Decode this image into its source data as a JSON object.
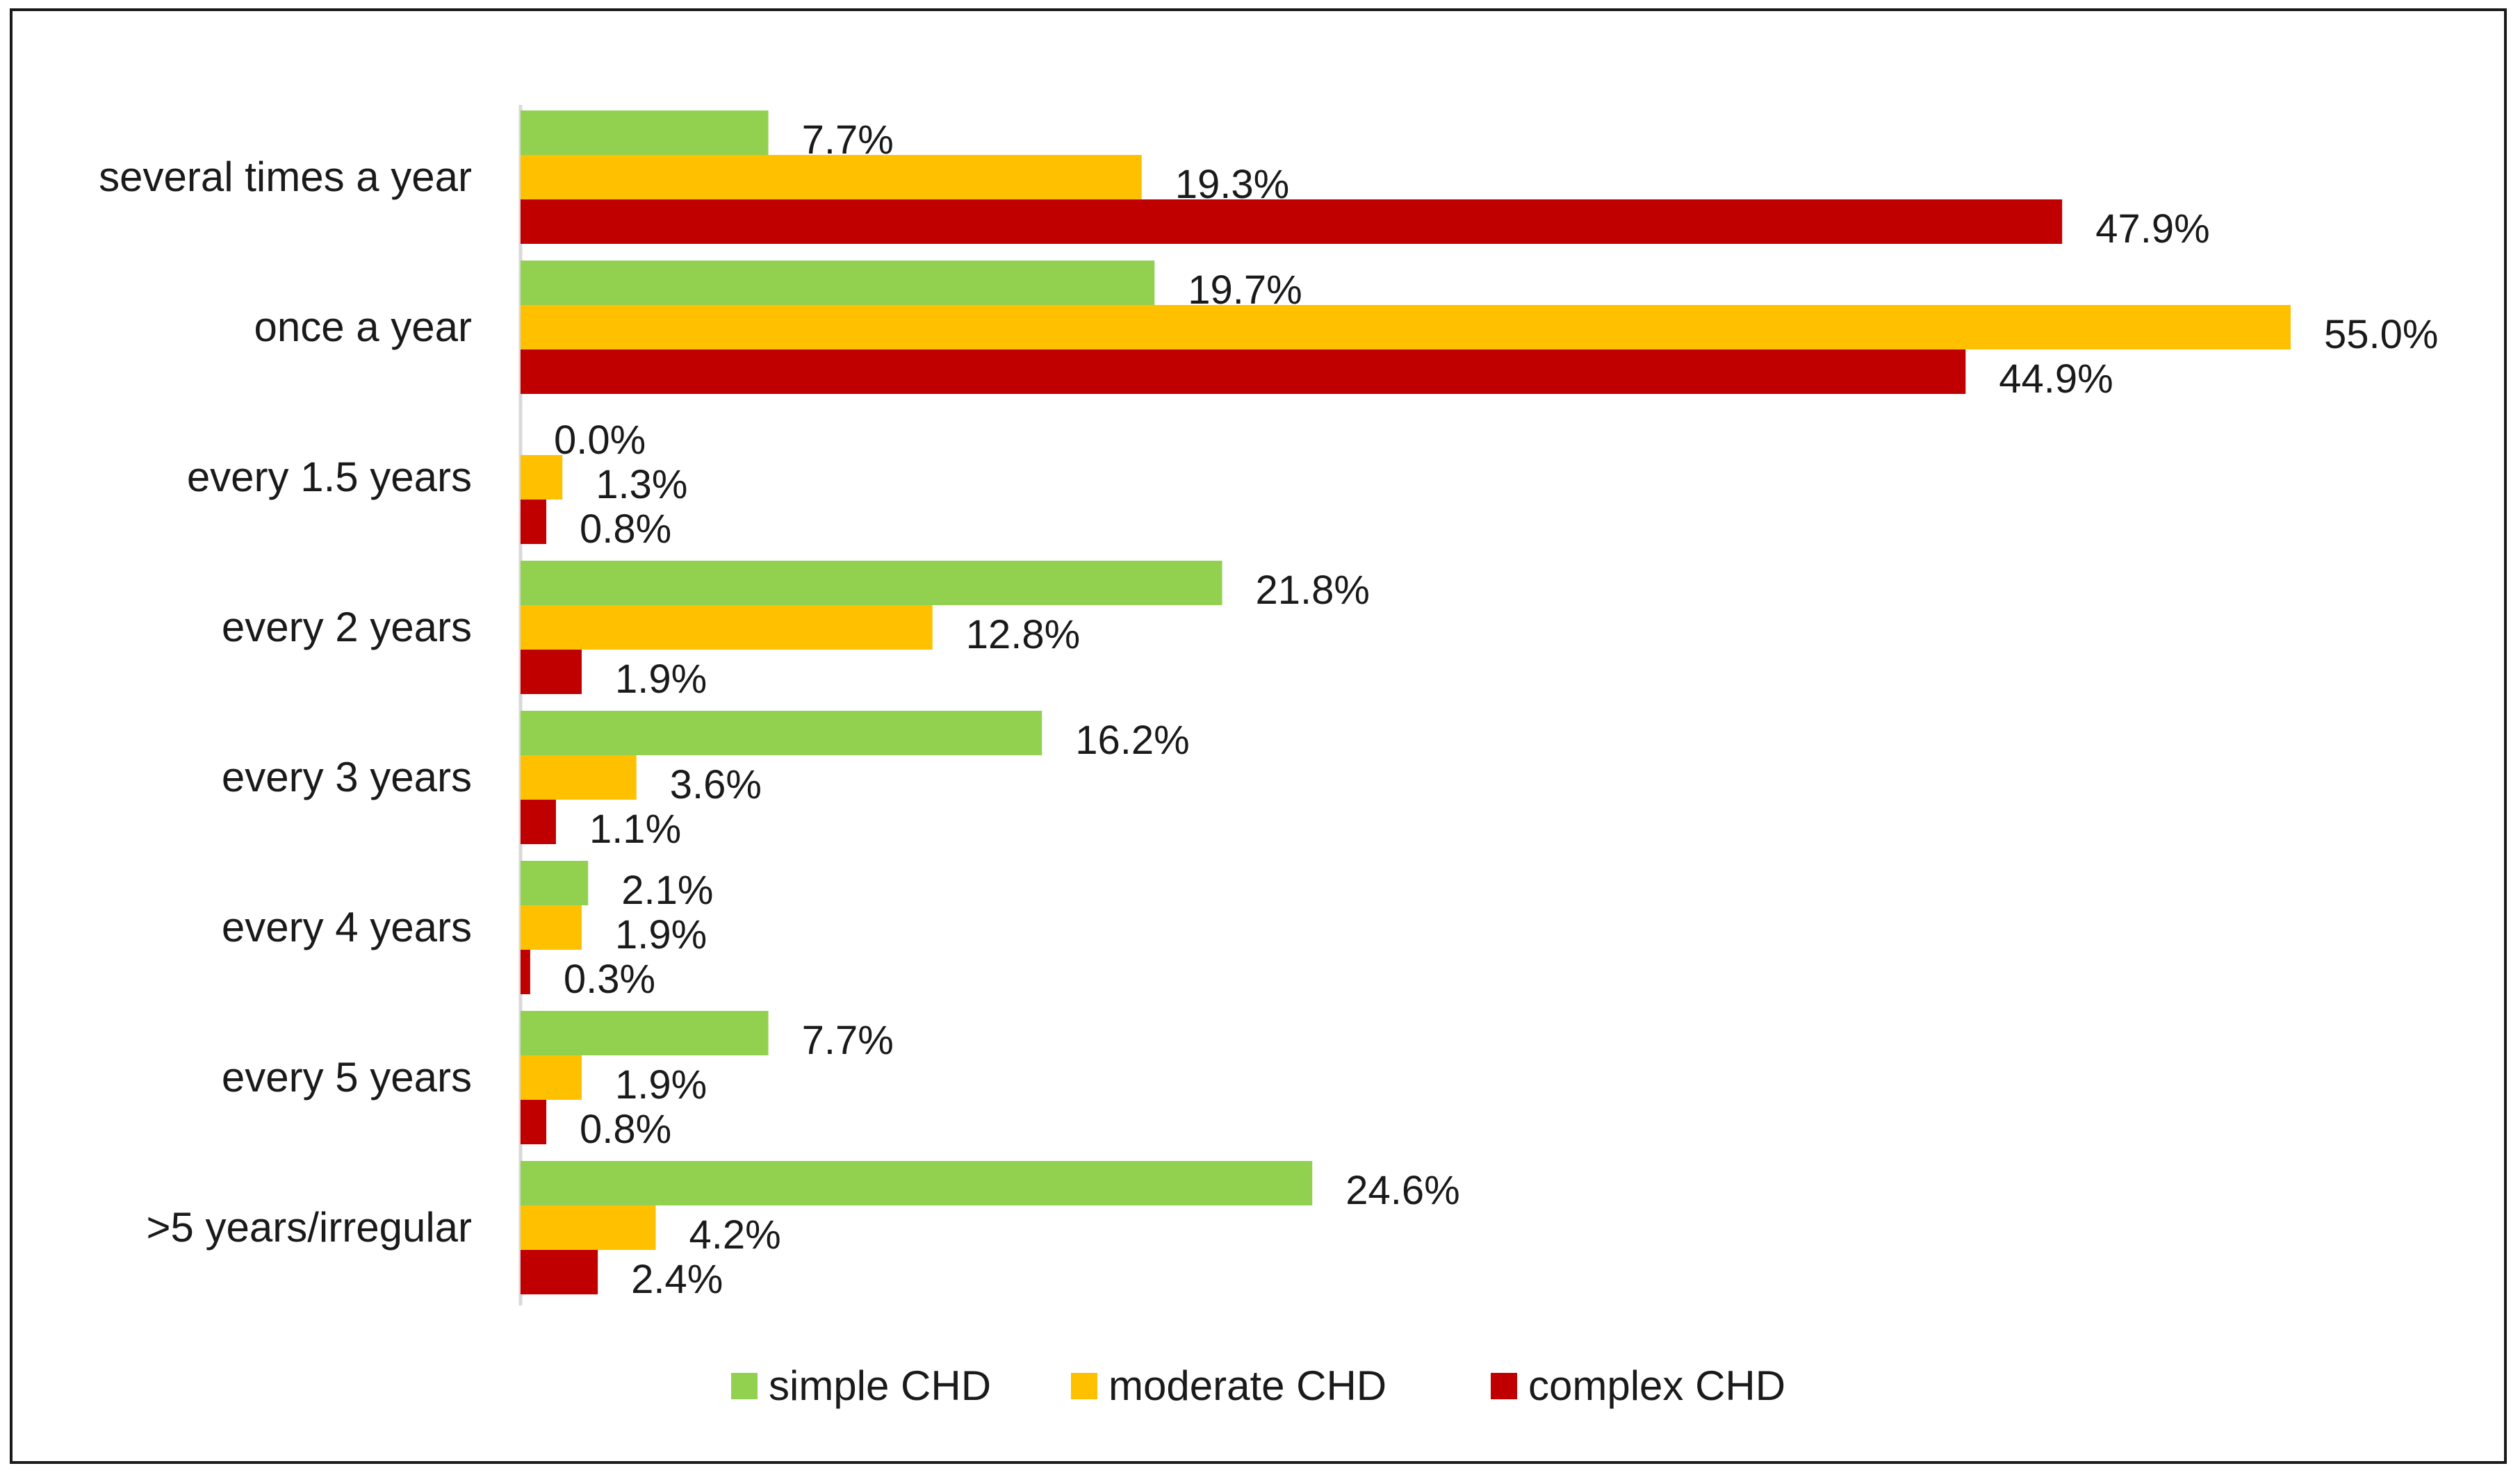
{
  "chart_data": {
    "type": "bar",
    "orientation": "horizontal",
    "categories": [
      "several times a year",
      "once a year",
      "every 1.5 years",
      "every 2 years",
      "every 3 years",
      "every 4 years",
      "every 5 years",
      ">5 years/irregular"
    ],
    "series": [
      {
        "name": "simple CHD",
        "color": "#92d050",
        "values": [
          7.7,
          19.7,
          0.0,
          21.8,
          16.2,
          2.1,
          7.7,
          24.6
        ],
        "labels": [
          "7.7%",
          "19.7%",
          "0.0%",
          "21.8%",
          "16.2%",
          "2.1%",
          "7.7%",
          "24.6%"
        ]
      },
      {
        "name": "moderate CHD",
        "color": "#ffc000",
        "values": [
          19.3,
          55.0,
          1.3,
          12.8,
          3.6,
          1.9,
          1.9,
          4.2
        ],
        "labels": [
          "19.3%",
          "55.0%",
          "1.3%",
          "12.8%",
          "3.6%",
          "1.9%",
          "1.9%",
          "4.2%"
        ]
      },
      {
        "name": "complex CHD",
        "color": "#c00000",
        "values": [
          47.9,
          44.9,
          0.8,
          1.9,
          1.1,
          0.3,
          0.8,
          2.4
        ],
        "labels": [
          "47.9%",
          "44.9%",
          "0.8%",
          "1.9%",
          "1.1%",
          "0.3%",
          "0.8%",
          "2.4%"
        ]
      }
    ],
    "xlim": [
      0,
      55
    ],
    "grid": false,
    "legend": "bottom",
    "title": "",
    "xlabel": "",
    "ylabel": ""
  }
}
